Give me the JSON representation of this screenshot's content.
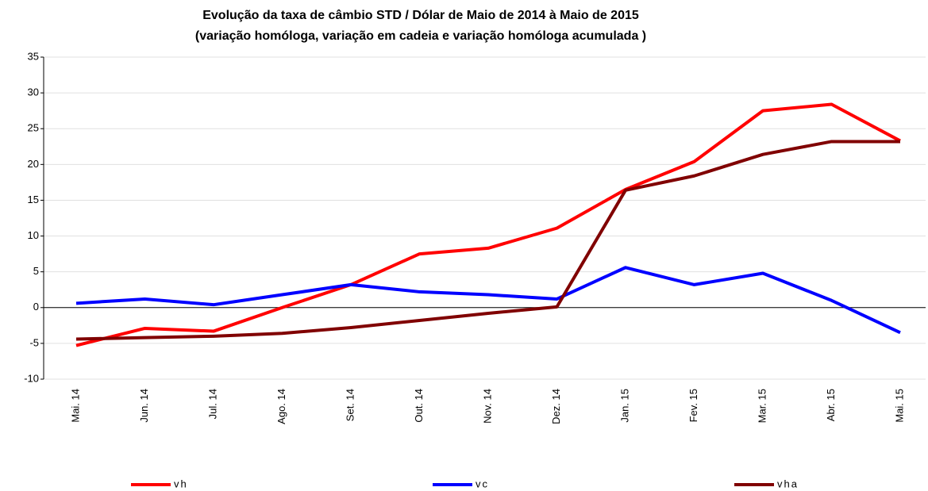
{
  "chart_data": {
    "type": "line",
    "title": "Evolução da taxa de câmbio STD / Dólar  de Maio de 2014 à Maio de 2015",
    "subtitle": "(variação homóloga, variação em cadeia  e variação homóloga acumulada )",
    "categories": [
      "Mai. 14",
      "Jun. 14",
      "Jul. 14",
      "Ago. 14",
      "Set. 14",
      "Out. 14",
      "Nov. 14",
      "Dez. 14",
      "Jan. 15",
      "Fev. 15",
      "Mar. 15",
      "Abr. 15",
      "Mai. 15"
    ],
    "series": [
      {
        "name": "vh",
        "color": "#ff0000",
        "values": [
          -5.3,
          -2.9,
          -3.3,
          0,
          3.2,
          7.5,
          8.3,
          11.1,
          16.5,
          20.4,
          27.5,
          28.4,
          23.3
        ]
      },
      {
        "name": "vc",
        "color": "#0000ff",
        "values": [
          0.6,
          1.2,
          0.4,
          1.8,
          3.2,
          2.2,
          1.8,
          1.2,
          5.6,
          3.2,
          4.8,
          1.0,
          -3.5
        ]
      },
      {
        "name": "vha",
        "color": "#800000",
        "values": [
          -4.4,
          -4.2,
          -4.0,
          -3.6,
          -2.8,
          -1.8,
          -0.8,
          0.1,
          16.4,
          18.4,
          21.4,
          23.2,
          23.2
        ]
      }
    ],
    "ylim": [
      -10,
      35
    ],
    "yticks": [
      -10,
      -5,
      0,
      5,
      10,
      15,
      20,
      25,
      30,
      35
    ],
    "grid": true,
    "legend": "bottom"
  }
}
